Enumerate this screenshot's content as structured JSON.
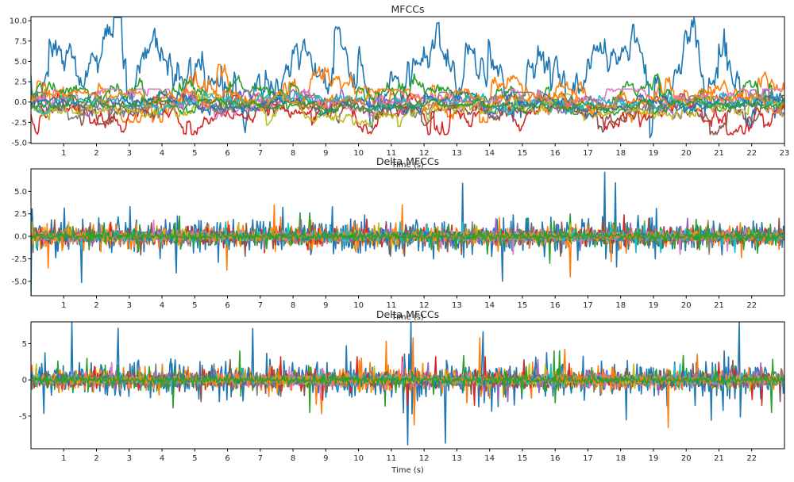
{
  "chart_data": [
    {
      "type": "line",
      "title": "MFCCs",
      "xlabel": "Time (s)",
      "ylabel": "",
      "xlim": [
        0,
        23
      ],
      "ylim": [
        -5.1,
        10.5
      ],
      "xticks": [
        "1",
        "2",
        "3",
        "4",
        "5",
        "6",
        "7",
        "8",
        "9",
        "10",
        "11",
        "12",
        "13",
        "14",
        "15",
        "16",
        "17",
        "18",
        "19",
        "20",
        "21",
        "22",
        "23"
      ],
      "yticks": [
        "-5.0",
        "-2.5",
        "0.0",
        "2.5",
        "5.0",
        "7.5",
        "10.0"
      ],
      "grid": false,
      "series_colors": [
        "#1f77b4",
        "#ff7f0e",
        "#2ca02c",
        "#d62728",
        "#9467bd",
        "#8c564b",
        "#e377c2",
        "#7f7f7f",
        "#bcbd22",
        "#17becf",
        "#1f77b4",
        "#ff7f0e",
        "#2ca02c"
      ],
      "series_profiles": [
        {
          "baseline": 3.8,
          "spread": 2.4,
          "min": -5.0,
          "max": 10.4
        },
        {
          "baseline": 0.6,
          "spread": 1.2,
          "min": -2.5,
          "max": 4.6
        },
        {
          "baseline": 0.9,
          "spread": 0.9,
          "min": -1.5,
          "max": 4.2
        },
        {
          "baseline": -1.2,
          "spread": 0.9,
          "min": -4.0,
          "max": 1.0
        },
        {
          "baseline": -0.5,
          "spread": 0.7,
          "min": -3.3,
          "max": 1.5
        },
        {
          "baseline": -1.0,
          "spread": 0.8,
          "min": -4.0,
          "max": 0.8
        },
        {
          "baseline": 0.2,
          "spread": 0.6,
          "min": -2.2,
          "max": 1.6
        },
        {
          "baseline": -0.3,
          "spread": 0.6,
          "min": -2.2,
          "max": 1.2
        },
        {
          "baseline": -0.8,
          "spread": 0.7,
          "min": -3.0,
          "max": 1.0
        },
        {
          "baseline": 0.0,
          "spread": 0.5,
          "min": -2.0,
          "max": 1.8
        },
        {
          "baseline": -0.4,
          "spread": 0.5,
          "min": -2.0,
          "max": 1.2
        },
        {
          "baseline": 0.3,
          "spread": 0.5,
          "min": -1.6,
          "max": 1.6
        },
        {
          "baseline": -0.2,
          "spread": 0.4,
          "min": -1.6,
          "max": 1.4
        }
      ]
    },
    {
      "type": "line",
      "title": "Delta MFCCs",
      "xlabel": "Time (s)",
      "ylabel": "",
      "xlim": [
        0,
        23
      ],
      "ylim": [
        -6.6,
        7.5
      ],
      "xticks": [
        "1",
        "2",
        "3",
        "4",
        "5",
        "6",
        "7",
        "8",
        "9",
        "10",
        "11",
        "12",
        "13",
        "14",
        "15",
        "16",
        "17",
        "18",
        "19",
        "20",
        "21",
        "22"
      ],
      "yticks": [
        "-5.0",
        "-2.5",
        "0.0",
        "2.5",
        "5.0"
      ],
      "grid": false,
      "series_colors": [
        "#1f77b4",
        "#ff7f0e",
        "#2ca02c",
        "#d62728",
        "#9467bd",
        "#8c564b",
        "#e377c2",
        "#7f7f7f",
        "#bcbd22",
        "#17becf",
        "#1f77b4",
        "#ff7f0e",
        "#2ca02c"
      ],
      "series_profiles": [
        {
          "baseline": 0.0,
          "spread": 1.6,
          "min": -6.6,
          "max": 7.5
        },
        {
          "baseline": 0.0,
          "spread": 1.1,
          "min": -4.5,
          "max": 3.5
        },
        {
          "baseline": 0.0,
          "spread": 0.8,
          "min": -3.0,
          "max": 2.6
        },
        {
          "baseline": 0.0,
          "spread": 0.7,
          "min": -2.6,
          "max": 2.4
        },
        {
          "baseline": 0.0,
          "spread": 0.6,
          "min": -2.2,
          "max": 2.0
        },
        {
          "baseline": 0.0,
          "spread": 0.6,
          "min": -2.2,
          "max": 2.0
        },
        {
          "baseline": 0.0,
          "spread": 0.5,
          "min": -2.0,
          "max": 1.8
        },
        {
          "baseline": 0.0,
          "spread": 0.5,
          "min": -1.8,
          "max": 1.6
        },
        {
          "baseline": 0.0,
          "spread": 0.5,
          "min": -1.8,
          "max": 1.6
        },
        {
          "baseline": 0.0,
          "spread": 0.5,
          "min": -1.8,
          "max": 1.6
        },
        {
          "baseline": 0.0,
          "spread": 0.4,
          "min": -1.5,
          "max": 1.5
        },
        {
          "baseline": 0.0,
          "spread": 0.4,
          "min": -1.5,
          "max": 1.5
        },
        {
          "baseline": 0.0,
          "spread": 0.4,
          "min": -1.5,
          "max": 1.5
        }
      ]
    },
    {
      "type": "line",
      "title": "Delta MFCCs",
      "xlabel": "Time (s)",
      "ylabel": "",
      "xlim": [
        0,
        23
      ],
      "ylim": [
        -9.5,
        8.0
      ],
      "xticks": [
        "1",
        "2",
        "3",
        "4",
        "5",
        "6",
        "7",
        "8",
        "9",
        "10",
        "11",
        "12",
        "13",
        "14",
        "15",
        "16",
        "17",
        "18",
        "19",
        "20",
        "21",
        "22"
      ],
      "yticks": [
        "-5",
        "0",
        "5"
      ],
      "grid": false,
      "series_colors": [
        "#1f77b4",
        "#ff7f0e",
        "#2ca02c",
        "#d62728",
        "#9467bd",
        "#8c564b",
        "#e377c2",
        "#7f7f7f",
        "#bcbd22",
        "#17becf",
        "#1f77b4",
        "#ff7f0e",
        "#2ca02c"
      ],
      "series_profiles": [
        {
          "baseline": 0.0,
          "spread": 2.2,
          "min": -9.5,
          "max": 8.0
        },
        {
          "baseline": 0.0,
          "spread": 1.5,
          "min": -7.6,
          "max": 5.8
        },
        {
          "baseline": 0.0,
          "spread": 1.1,
          "min": -4.5,
          "max": 4.0
        },
        {
          "baseline": 0.0,
          "spread": 0.9,
          "min": -3.5,
          "max": 3.2
        },
        {
          "baseline": 0.0,
          "spread": 0.8,
          "min": -3.0,
          "max": 2.8
        },
        {
          "baseline": 0.0,
          "spread": 0.8,
          "min": -3.0,
          "max": 2.8
        },
        {
          "baseline": 0.0,
          "spread": 0.7,
          "min": -2.6,
          "max": 2.4
        },
        {
          "baseline": 0.0,
          "spread": 0.6,
          "min": -2.4,
          "max": 2.2
        },
        {
          "baseline": 0.0,
          "spread": 0.6,
          "min": -2.4,
          "max": 2.2
        },
        {
          "baseline": 0.0,
          "spread": 0.6,
          "min": -2.4,
          "max": 2.2
        },
        {
          "baseline": 0.0,
          "spread": 0.5,
          "min": -2.0,
          "max": 2.0
        },
        {
          "baseline": 0.0,
          "spread": 0.5,
          "min": -2.0,
          "max": 2.0
        },
        {
          "baseline": 0.0,
          "spread": 0.5,
          "min": -2.0,
          "max": 2.0
        }
      ]
    }
  ]
}
